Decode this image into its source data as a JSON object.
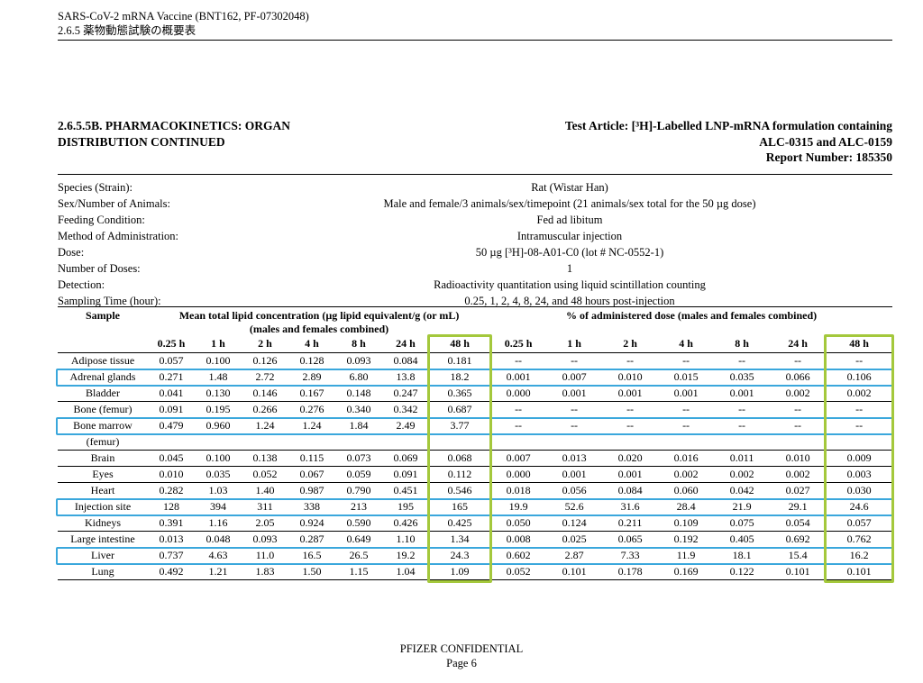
{
  "page": {
    "doc_header_line1": "SARS-CoV-2 mRNA Vaccine (BNT162, PF-07302048)",
    "doc_header_line2": "2.6.5 薬物動態試験の概要表"
  },
  "title_block": {
    "section_line1": "2.6.5.5B. PHARMACOKINETICS: ORGAN",
    "section_line2": "DISTRIBUTION CONTINUED",
    "test_article_line1": "Test Article: [³H]-Labelled LNP-mRNA formulation containing",
    "test_article_line2": "ALC-0315 and ALC-0159",
    "report_number": "Report Number: 185350"
  },
  "metadata": [
    {
      "label": "Species (Strain):",
      "value": "Rat (Wistar Han)"
    },
    {
      "label": "Sex/Number of Animals:",
      "value": "Male and female/3 animals/sex/timepoint (21 animals/sex total for the 50 µg dose)"
    },
    {
      "label": "Feeding Condition:",
      "value": "Fed ad libitum"
    },
    {
      "label": "Method of Administration:",
      "value": "Intramuscular injection"
    },
    {
      "label": "Dose:",
      "value": "50 µg [³H]-08-A01-C0 (lot # NC-0552-1)"
    },
    {
      "label": "Number of Doses:",
      "value": "1"
    },
    {
      "label": "Detection:",
      "value": "Radioactivity quantitation using liquid scintillation counting"
    },
    {
      "label": "Sampling Time (hour):",
      "value": "0.25, 1, 2, 4, 8, 24, and 48 hours post-injection"
    }
  ],
  "table": {
    "sample_header": "Sample",
    "group1_line1": "Mean total lipid concentration (µg lipid equivalent/g (or mL)",
    "group1_line2": "(males and females combined)",
    "group2": "% of administered dose (males and females combined)",
    "time_headers": [
      "0.25 h",
      "1 h",
      "2 h",
      "4 h",
      "8 h",
      "24 h",
      "48 h"
    ],
    "rows": [
      {
        "sample": "Adipose tissue",
        "conc": [
          "0.057",
          "0.100",
          "0.126",
          "0.128",
          "0.093",
          "0.084",
          "0.181"
        ],
        "pct": [
          "--",
          "--",
          "--",
          "--",
          "--",
          "--",
          "--"
        ],
        "highlight": false
      },
      {
        "sample": "Adrenal glands",
        "conc": [
          "0.271",
          "1.48",
          "2.72",
          "2.89",
          "6.80",
          "13.8",
          "18.2"
        ],
        "pct": [
          "0.001",
          "0.007",
          "0.010",
          "0.015",
          "0.035",
          "0.066",
          "0.106"
        ],
        "highlight": true
      },
      {
        "sample": "Bladder",
        "conc": [
          "0.041",
          "0.130",
          "0.146",
          "0.167",
          "0.148",
          "0.247",
          "0.365"
        ],
        "pct": [
          "0.000",
          "0.001",
          "0.001",
          "0.001",
          "0.001",
          "0.002",
          "0.002"
        ],
        "highlight": false
      },
      {
        "sample": "Bone (femur)",
        "conc": [
          "0.091",
          "0.195",
          "0.266",
          "0.276",
          "0.340",
          "0.342",
          "0.687"
        ],
        "pct": [
          "--",
          "--",
          "--",
          "--",
          "--",
          "--",
          "--"
        ],
        "highlight": false
      },
      {
        "sample": "Bone marrow",
        "conc": [
          "0.479",
          "0.960",
          "1.24",
          "1.24",
          "1.84",
          "2.49",
          "3.77"
        ],
        "pct": [
          "--",
          "--",
          "--",
          "--",
          "--",
          "--",
          "--"
        ],
        "highlight": true
      },
      {
        "sample": "(femur)",
        "conc": [
          "",
          "",
          "",
          "",
          "",
          "",
          ""
        ],
        "pct": [
          "",
          "",
          "",
          "",
          "",
          "",
          ""
        ],
        "highlight": false
      },
      {
        "sample": "Brain",
        "conc": [
          "0.045",
          "0.100",
          "0.138",
          "0.115",
          "0.073",
          "0.069",
          "0.068"
        ],
        "pct": [
          "0.007",
          "0.013",
          "0.020",
          "0.016",
          "0.011",
          "0.010",
          "0.009"
        ],
        "highlight": false
      },
      {
        "sample": "Eyes",
        "conc": [
          "0.010",
          "0.035",
          "0.052",
          "0.067",
          "0.059",
          "0.091",
          "0.112"
        ],
        "pct": [
          "0.000",
          "0.001",
          "0.001",
          "0.002",
          "0.002",
          "0.002",
          "0.003"
        ],
        "highlight": false
      },
      {
        "sample": "Heart",
        "conc": [
          "0.282",
          "1.03",
          "1.40",
          "0.987",
          "0.790",
          "0.451",
          "0.546"
        ],
        "pct": [
          "0.018",
          "0.056",
          "0.084",
          "0.060",
          "0.042",
          "0.027",
          "0.030"
        ],
        "highlight": false
      },
      {
        "sample": "Injection site",
        "conc": [
          "128",
          "394",
          "311",
          "338",
          "213",
          "195",
          "165"
        ],
        "pct": [
          "19.9",
          "52.6",
          "31.6",
          "28.4",
          "21.9",
          "29.1",
          "24.6"
        ],
        "highlight": true
      },
      {
        "sample": "Kidneys",
        "conc": [
          "0.391",
          "1.16",
          "2.05",
          "0.924",
          "0.590",
          "0.426",
          "0.425"
        ],
        "pct": [
          "0.050",
          "0.124",
          "0.211",
          "0.109",
          "0.075",
          "0.054",
          "0.057"
        ],
        "highlight": false
      },
      {
        "sample": "Large intestine",
        "conc": [
          "0.013",
          "0.048",
          "0.093",
          "0.287",
          "0.649",
          "1.10",
          "1.34"
        ],
        "pct": [
          "0.008",
          "0.025",
          "0.065",
          "0.192",
          "0.405",
          "0.692",
          "0.762"
        ],
        "highlight": false
      },
      {
        "sample": "Liver",
        "conc": [
          "0.737",
          "4.63",
          "11.0",
          "16.5",
          "26.5",
          "19.2",
          "24.3"
        ],
        "pct": [
          "0.602",
          "2.87",
          "7.33",
          "11.9",
          "18.1",
          "15.4",
          "16.2"
        ],
        "highlight": true
      },
      {
        "sample": "Lung",
        "conc": [
          "0.492",
          "1.21",
          "1.83",
          "1.50",
          "1.15",
          "1.04",
          "1.09"
        ],
        "pct": [
          "0.052",
          "0.101",
          "0.178",
          "0.169",
          "0.122",
          "0.101",
          "0.101"
        ],
        "highlight": false
      }
    ],
    "highlight_colors": {
      "row_box": "#3aa7dc",
      "col_box": "#a4c83c"
    }
  },
  "footer": {
    "line1": "PFIZER CONFIDENTIAL",
    "line2": "Page 6"
  }
}
